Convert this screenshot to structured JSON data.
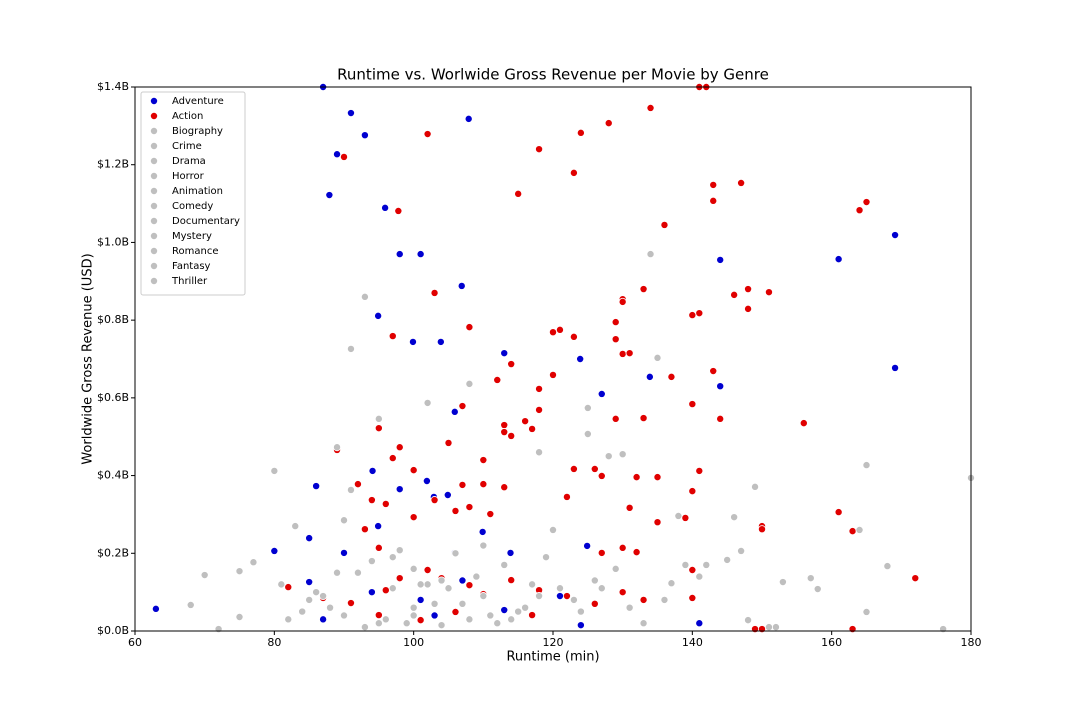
{
  "chart_data": {
    "type": "scatter",
    "title": "Runtime vs. Worlwide Gross Revenue per Movie by Genre",
    "xlabel": "Runtime (min)",
    "ylabel": "Worldwide Gross Revenue (USD)",
    "xlim": [
      60,
      180
    ],
    "xticks": [
      60,
      80,
      100,
      120,
      140,
      160,
      180
    ],
    "ylim": [
      0,
      1.4
    ],
    "yticks": [
      {
        "value": 0,
        "label": "$0.0B"
      },
      {
        "value": 0.2,
        "label": "$0.2B"
      },
      {
        "value": 0.4,
        "label": "$0.4B"
      },
      {
        "value": 0.6,
        "label": "$0.6B"
      },
      {
        "value": 0.8,
        "label": "$0.8B"
      },
      {
        "value": 1.0,
        "label": "$1.0B"
      },
      {
        "value": 1.2,
        "label": "$1.2B"
      },
      {
        "value": 1.4,
        "label": "$1.4B"
      }
    ],
    "legend": "upper left",
    "series": [
      {
        "name": "Adventure",
        "color": "#0000d0",
        "x": [
          87,
          91,
          93,
          89,
          87.9,
          95.9,
          98,
          101,
          107.9,
          106.9,
          94.9,
          99.9,
          103.9,
          113,
          123.9,
          127,
          133.9,
          144,
          144,
          161,
          169.1,
          169.1,
          105.9,
          94.1,
          86,
          98,
          101.9,
          102.9,
          104.9,
          80,
          90,
          94.9,
          85,
          105.9,
          109.9,
          113.9,
          124.9,
          63,
          85,
          87,
          94,
          101,
          107,
          113,
          124,
          141,
          121,
          103
        ],
        "y": [
          1.4,
          1.333,
          1.276,
          1.227,
          1.122,
          1.089,
          0.97,
          0.97,
          1.318,
          0.888,
          0.811,
          0.744,
          0.744,
          0.715,
          0.7,
          0.61,
          0.654,
          0.955,
          0.63,
          0.957,
          1.019,
          0.677,
          0.564,
          0.412,
          0.373,
          0.365,
          0.386,
          0.345,
          0.35,
          0.206,
          0.201,
          0.27,
          0.239,
          0.201,
          0.255,
          0.201,
          0.219,
          0.057,
          0.126,
          0.03,
          0.1,
          0.08,
          0.13,
          0.054,
          0.015,
          0.02,
          0.09,
          0.04
        ]
      },
      {
        "name": "Action",
        "color": "#e00000",
        "x": [
          141,
          142,
          134,
          128,
          124,
          102,
          118,
          90,
          123,
          115,
          147,
          143,
          143,
          97.8,
          165,
          164,
          136,
          103,
          133,
          130,
          130,
          148,
          146,
          151,
          148,
          141,
          140,
          129,
          108,
          121,
          120,
          123,
          97,
          129,
          130,
          131,
          112,
          114,
          120,
          137,
          143,
          118,
          140,
          144,
          107,
          118,
          129,
          133,
          116,
          113,
          156,
          95,
          117,
          113,
          114,
          98,
          89,
          105,
          97,
          110,
          100,
          123,
          126,
          141,
          92,
          110,
          107,
          113,
          127,
          132,
          135,
          140,
          94,
          96,
          103,
          122,
          108,
          106,
          131,
          139,
          135,
          161,
          150,
          150,
          163,
          100,
          111,
          93,
          95,
          127,
          130,
          132,
          140,
          172,
          150,
          163,
          149,
          82,
          87,
          91,
          96,
          98,
          102,
          104,
          108,
          110,
          114,
          118,
          122,
          126,
          130,
          133,
          140,
          101,
          95,
          106,
          117
        ],
        "y": [
          1.4,
          1.4,
          1.346,
          1.307,
          1.282,
          1.279,
          1.24,
          1.22,
          1.179,
          1.125,
          1.153,
          1.148,
          1.107,
          1.081,
          1.104,
          1.083,
          1.045,
          0.87,
          0.88,
          0.854,
          0.847,
          0.88,
          0.865,
          0.872,
          0.829,
          0.818,
          0.813,
          0.795,
          0.782,
          0.775,
          0.769,
          0.757,
          0.759,
          0.751,
          0.713,
          0.715,
          0.646,
          0.687,
          0.659,
          0.654,
          0.669,
          0.623,
          0.584,
          0.546,
          0.579,
          0.569,
          0.546,
          0.548,
          0.54,
          0.53,
          0.535,
          0.522,
          0.52,
          0.512,
          0.502,
          0.473,
          0.466,
          0.484,
          0.445,
          0.44,
          0.414,
          0.417,
          0.417,
          0.412,
          0.378,
          0.378,
          0.376,
          0.37,
          0.399,
          0.396,
          0.396,
          0.36,
          0.337,
          0.327,
          0.337,
          0.345,
          0.319,
          0.309,
          0.317,
          0.291,
          0.28,
          0.306,
          0.27,
          0.262,
          0.257,
          0.293,
          0.301,
          0.262,
          0.214,
          0.201,
          0.214,
          0.203,
          0.157,
          0.136,
          0.005,
          0.005,
          0.005,
          0.113,
          0.085,
          0.072,
          0.105,
          0.136,
          0.157,
          0.136,
          0.118,
          0.095,
          0.131,
          0.105,
          0.09,
          0.07,
          0.1,
          0.08,
          0.085,
          0.028,
          0.041,
          0.049,
          0.041
        ]
      },
      {
        "name": "Biography",
        "color": "#bfbfbf",
        "x": [
          93,
          108,
          125,
          80,
          83,
          90,
          98,
          102
        ],
        "y": [
          0.86,
          0.636,
          0.507,
          0.412,
          0.27,
          0.285,
          0.208,
          0.12
        ]
      },
      {
        "name": "Crime",
        "color": "#bfbfbf",
        "x": [
          91,
          102,
          95,
          125,
          135,
          118,
          128,
          110,
          115
        ],
        "y": [
          0.726,
          0.587,
          0.546,
          0.574,
          0.703,
          0.46,
          0.45,
          0.09,
          0.05
        ]
      },
      {
        "name": "Drama",
        "color": "#bfbfbf",
        "x": [
          134,
          130,
          89,
          91,
          146,
          147,
          145,
          100,
          105,
          112
        ],
        "y": [
          0.97,
          0.455,
          0.473,
          0.363,
          0.293,
          0.206,
          0.183,
          0.04,
          0.11,
          0.02
        ]
      },
      {
        "name": "Horror",
        "color": "#bfbfbf",
        "x": [
          180,
          165,
          149,
          70,
          68,
          72,
          75,
          88,
          95
        ],
        "y": [
          0.394,
          0.427,
          0.371,
          0.144,
          0.067,
          0.005,
          0.154,
          0.06,
          0.02
        ]
      },
      {
        "name": "Animation",
        "color": "#bfbfbf",
        "x": [
          75,
          77,
          157,
          153,
          158,
          85,
          92,
          97
        ],
        "y": [
          0.036,
          0.177,
          0.136,
          0.126,
          0.108,
          0.08,
          0.15,
          0.19
        ]
      },
      {
        "name": "Comedy",
        "color": "#bfbfbf",
        "x": [
          168,
          164,
          165,
          176,
          152,
          100,
          104,
          108,
          113
        ],
        "y": [
          0.167,
          0.26,
          0.049,
          0.005,
          0.01,
          0.06,
          0.13,
          0.03,
          0.17
        ]
      },
      {
        "name": "Documentary",
        "color": "#bfbfbf",
        "x": [
          138,
          139,
          137,
          142,
          148,
          151,
          120,
          123
        ],
        "y": [
          0.296,
          0.17,
          0.123,
          0.17,
          0.028,
          0.01,
          0.26,
          0.08
        ]
      },
      {
        "name": "Mystery",
        "color": "#bfbfbf",
        "x": [
          82,
          86,
          94,
          99,
          103,
          109,
          116,
          121
        ],
        "y": [
          0.03,
          0.1,
          0.18,
          0.02,
          0.07,
          0.14,
          0.06,
          0.11
        ]
      },
      {
        "name": "Romance",
        "color": "#bfbfbf",
        "x": [
          84,
          89,
          96,
          101,
          106,
          111,
          118,
          126,
          131
        ],
        "y": [
          0.05,
          0.15,
          0.03,
          0.12,
          0.2,
          0.04,
          0.09,
          0.13,
          0.06
        ]
      },
      {
        "name": "Fantasy",
        "color": "#bfbfbf",
        "x": [
          87,
          93,
          100,
          107,
          114,
          119,
          127,
          133
        ],
        "y": [
          0.09,
          0.01,
          0.16,
          0.07,
          0.03,
          0.19,
          0.11,
          0.02
        ]
      },
      {
        "name": "Thriller",
        "color": "#bfbfbf",
        "x": [
          81,
          90,
          97,
          104,
          110,
          117,
          124,
          129,
          136,
          141
        ],
        "y": [
          0.12,
          0.04,
          0.11,
          0.015,
          0.22,
          0.12,
          0.05,
          0.16,
          0.08,
          0.14
        ]
      }
    ]
  }
}
